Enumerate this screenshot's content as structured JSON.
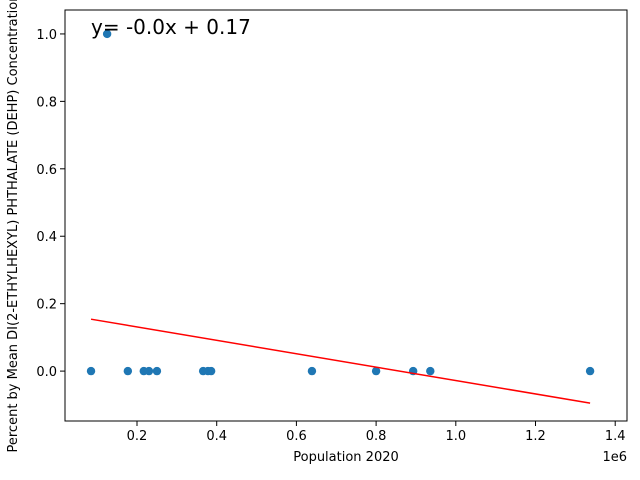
{
  "chart_data": {
    "type": "scatter",
    "x_label": "Population 2020",
    "y_label": "Percent by Mean DI(2-ETHYLHEXYL) PHTHALATE (DEHP) Concentration >",
    "x_offset_label": "1e6",
    "annotation": "y= -0.0x + 0.17",
    "annotation_color": "#ff0000",
    "x": [
      0.0846,
      0.125,
      0.177,
      0.217,
      0.23,
      0.25,
      0.366,
      0.378,
      0.386,
      0.639,
      0.8,
      0.893,
      0.936,
      1.337
    ],
    "series": [
      {
        "color": "#1f77b4",
        "values": [
          0,
          1,
          0,
          0,
          0,
          0,
          0,
          0,
          0,
          0,
          0,
          0,
          0,
          0
        ]
      }
    ],
    "fit": {
      "color": "#ff0000",
      "x": [
        0.0846,
        1.337
      ],
      "values": [
        0.154,
        -0.095
      ]
    },
    "xlim": [
      0.0193,
      1.4296
    ],
    "ylim": [
      -0.148,
      1.071
    ],
    "xticks": [
      0.2,
      0.4,
      0.6,
      0.8,
      {
        "value": 1,
        "label": "1.0"
      },
      1.2,
      1.4
    ],
    "yticks": [
      {
        "value": 0,
        "label": "0.0"
      },
      0.2,
      0.4,
      0.6,
      0.8,
      {
        "value": 1,
        "label": "1.0"
      }
    ]
  }
}
